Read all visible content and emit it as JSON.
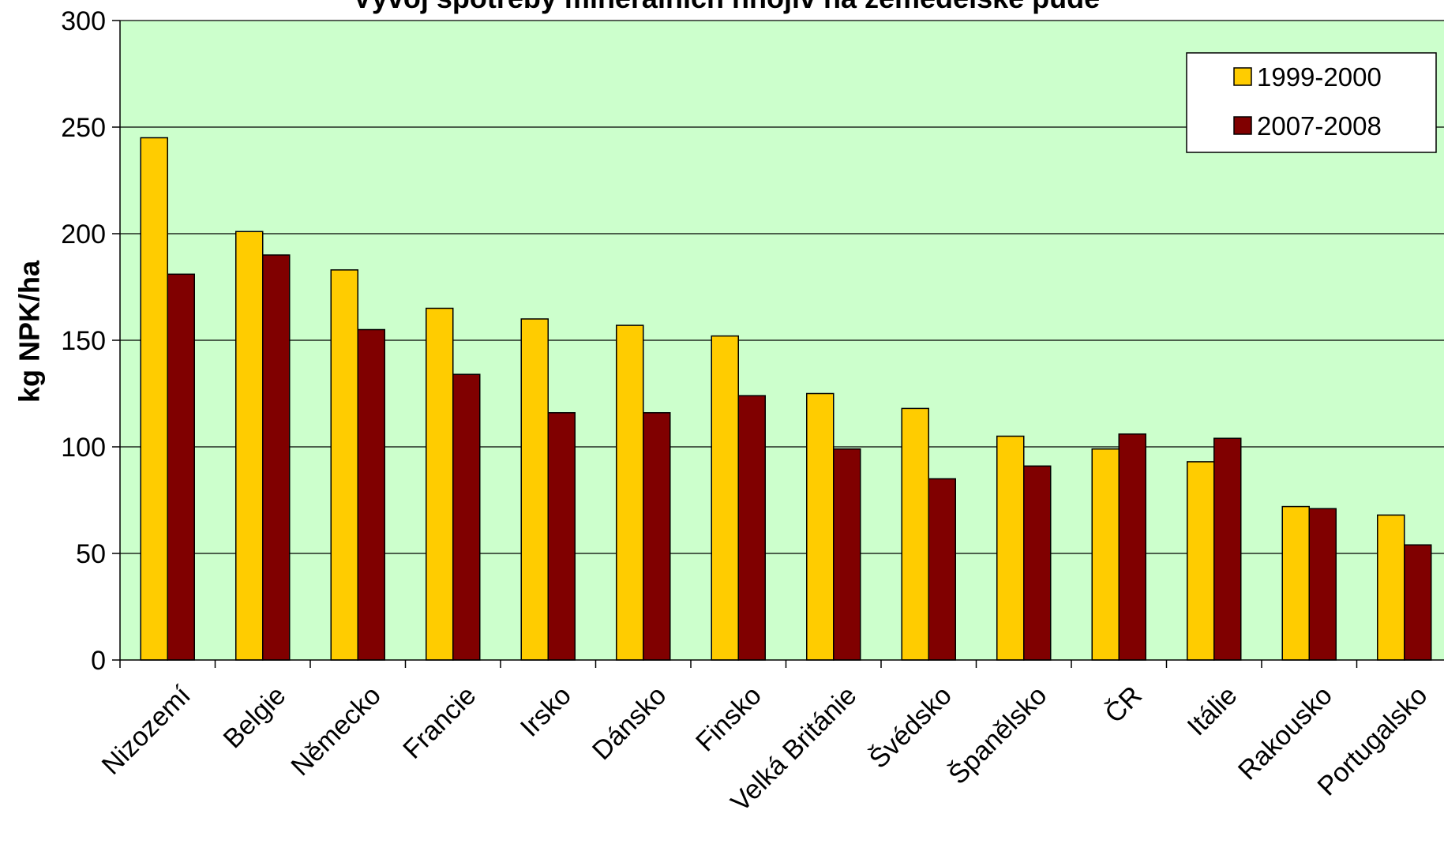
{
  "chart_data": {
    "type": "bar",
    "title": "Vývoj spotřeby minerálních hnojiv na zemědělské půdě",
    "xlabel": "",
    "ylabel": "kg NPK/ha",
    "ylim": [
      0,
      300
    ],
    "yticks": [
      "0",
      "50",
      "100",
      "150",
      "200",
      "250",
      "300"
    ],
    "grid": true,
    "legend_position": "top-right",
    "categories": [
      "Nizozemí",
      "Belgie",
      "Německo",
      "Francie",
      "Irsko",
      "Dánsko",
      "Finsko",
      "Velká Británie",
      "Švédsko",
      "Španělsko",
      "ČR",
      "Itálie",
      "Rakousko",
      "Portugalsko"
    ],
    "series": [
      {
        "name": "1999-2000",
        "color": "#FFCC00",
        "values": [
          245,
          201,
          183,
          165,
          160,
          157,
          152,
          125,
          118,
          105,
          99,
          93,
          72,
          68
        ]
      },
      {
        "name": "2007-2008",
        "color": "#800000",
        "values": [
          181,
          190,
          155,
          134,
          116,
          116,
          124,
          99,
          85,
          91,
          106,
          104,
          71,
          54
        ]
      }
    ],
    "plot_background": "#CCFFCC"
  }
}
